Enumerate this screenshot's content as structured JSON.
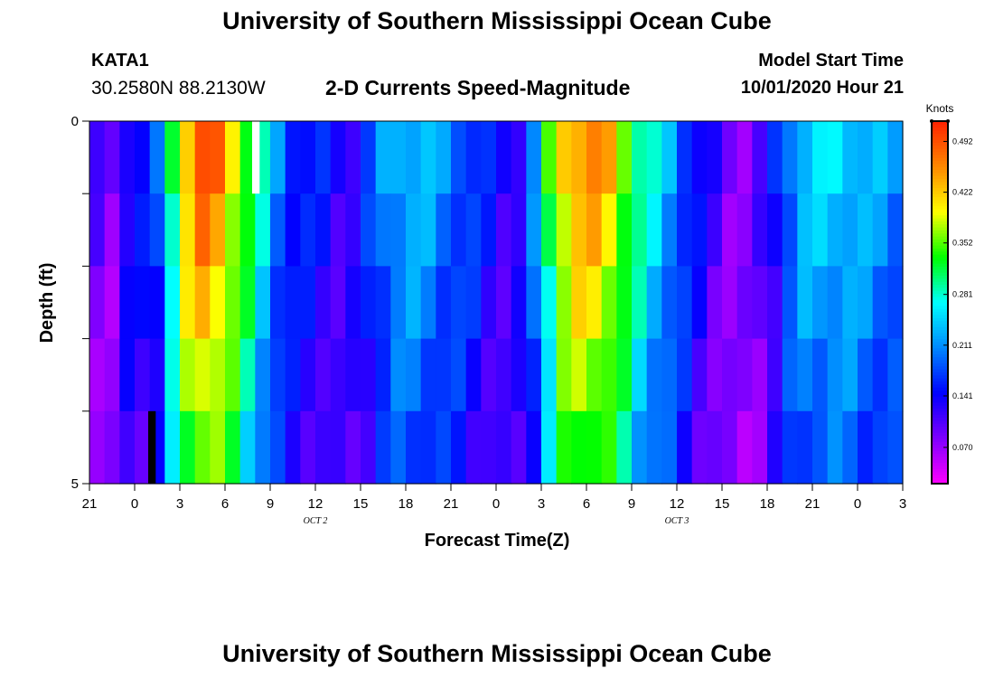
{
  "header": {
    "title": "University of Southern Mississippi Ocean Cube",
    "station_id": "KATA1",
    "coords": "30.2580N 88.2130W",
    "model_start_label": "Model Start Time",
    "model_start_value": "10/01/2020 Hour 21"
  },
  "footer": {
    "title": "University of Southern Mississippi Ocean Cube"
  },
  "chart_data": {
    "type": "heatmap",
    "title": "2-D Currents Speed-Magnitude",
    "xlabel": "Forecast Time(Z)",
    "ylabel": "Depth (ft)",
    "x_hours": [
      0,
      54
    ],
    "x_ticks": [
      "21",
      "0",
      "3",
      "6",
      "9",
      "12",
      "15",
      "18",
      "21",
      "0",
      "3",
      "6",
      "9",
      "12",
      "15",
      "18",
      "21",
      "0",
      "3"
    ],
    "date_labels": [
      {
        "text": "OCT 2",
        "hour": 15
      },
      {
        "text": "OCT 3",
        "hour": 39
      }
    ],
    "ylim": [
      0,
      5
    ],
    "y_tick_labels": [
      "0",
      "5"
    ],
    "y_minor_ticks": [
      1,
      2,
      3,
      4
    ],
    "colorbar": {
      "unit": "Knots",
      "range": [
        0.02,
        0.52
      ],
      "tick_values": [
        0.07,
        0.141,
        0.211,
        0.281,
        0.352,
        0.422,
        0.492
      ],
      "tick_labels": [
        "0.070",
        "0.141",
        "0.211",
        "0.281",
        "0.352",
        "0.422",
        "0.492"
      ],
      "colors": [
        "#ff00ff",
        "#7f00ff",
        "#0000ff",
        "#0088ff",
        "#00ffff",
        "#00ff00",
        "#ffff00",
        "#ff8800",
        "#ff2200"
      ]
    },
    "depth_rows": 5,
    "speed_profile": [
      [
        0,
        0.15
      ],
      [
        1,
        0.05
      ],
      [
        2,
        0.12
      ],
      [
        3,
        0.18
      ],
      [
        4,
        0.12
      ],
      [
        5,
        0.24
      ],
      [
        6,
        0.4
      ],
      [
        7,
        0.48
      ],
      [
        8,
        0.5
      ],
      [
        9,
        0.44
      ],
      [
        10,
        0.38
      ],
      [
        11,
        0.31
      ],
      [
        12,
        0.24
      ],
      [
        13,
        0.18
      ],
      [
        14,
        0.16
      ],
      [
        15,
        0.16
      ],
      [
        16,
        0.14
      ],
      [
        17,
        0.12
      ],
      [
        18,
        0.15
      ],
      [
        19,
        0.19
      ],
      [
        20,
        0.23
      ],
      [
        21,
        0.24
      ],
      [
        22,
        0.24
      ],
      [
        23,
        0.22
      ],
      [
        24,
        0.2
      ],
      [
        25,
        0.19
      ],
      [
        26,
        0.16
      ],
      [
        27,
        0.14
      ],
      [
        28,
        0.12
      ],
      [
        29,
        0.16
      ],
      [
        30,
        0.26
      ],
      [
        31,
        0.4
      ],
      [
        32,
        0.45
      ],
      [
        33,
        0.46
      ],
      [
        34,
        0.45
      ],
      [
        35,
        0.41
      ],
      [
        36,
        0.33
      ],
      [
        37,
        0.28
      ],
      [
        38,
        0.25
      ],
      [
        39,
        0.21
      ],
      [
        40,
        0.16
      ],
      [
        41,
        0.13
      ],
      [
        42,
        0.1
      ],
      [
        43,
        0.08
      ],
      [
        44,
        0.09
      ],
      [
        45,
        0.12
      ],
      [
        46,
        0.18
      ],
      [
        47,
        0.24
      ],
      [
        48,
        0.25
      ],
      [
        49,
        0.25
      ],
      [
        50,
        0.26
      ],
      [
        51,
        0.24
      ],
      [
        52,
        0.23
      ],
      [
        53,
        0.22
      ],
      [
        54,
        0.21
      ]
    ],
    "markers": [
      {
        "color": "#ffffff",
        "hour_start": 10.8,
        "hour_end": 11.3,
        "depth_start": 0,
        "depth_end": 1
      },
      {
        "color": "#000000",
        "hour_start": 3.9,
        "hour_end": 4.4,
        "depth_start": 4,
        "depth_end": 5
      }
    ]
  }
}
